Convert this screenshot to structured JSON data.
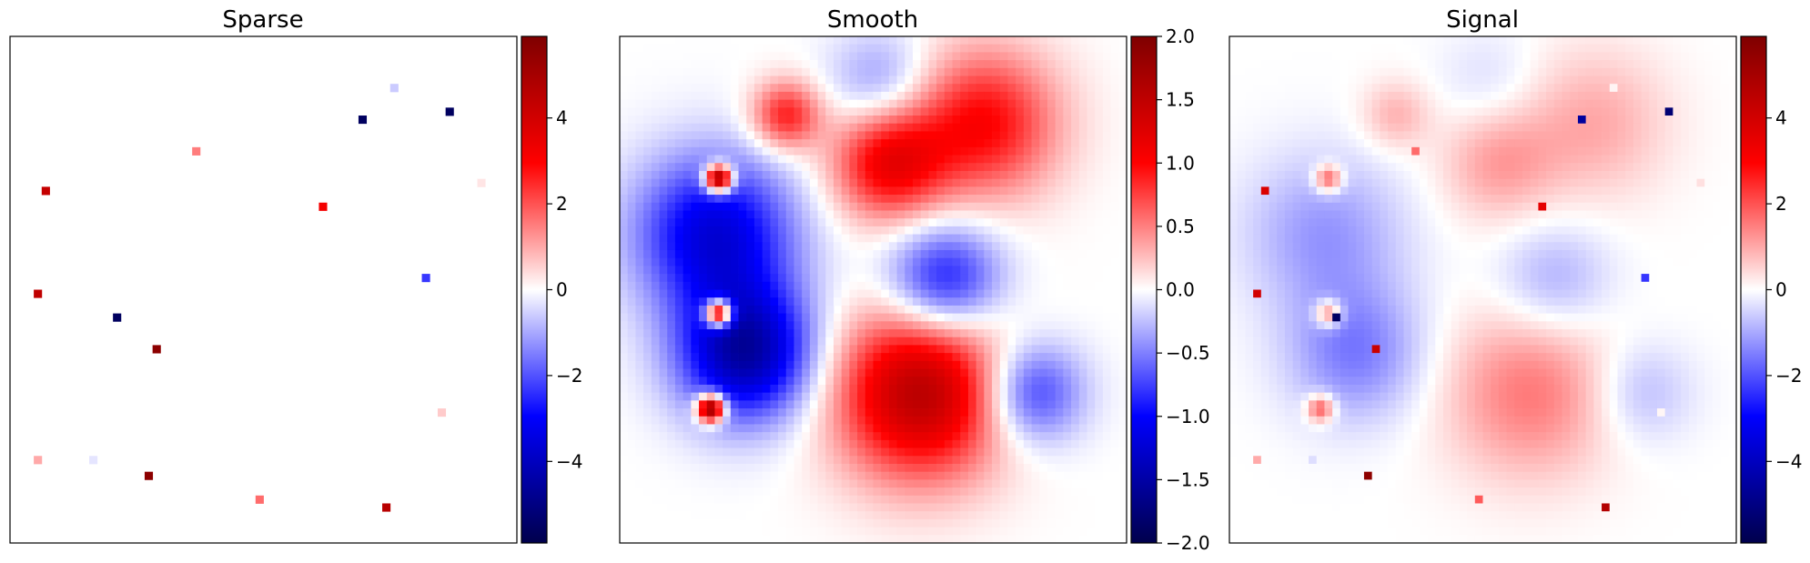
{
  "chart_data": [
    {
      "type": "heatmap",
      "title": "Sparse",
      "grid": false,
      "colormap": "seismic",
      "colorbar": {
        "ticks": [
          4,
          2,
          0,
          -2,
          -4
        ],
        "tick_labels": [
          "4",
          "2",
          "0",
          "−2",
          "−4"
        ],
        "range": [
          -5.9,
          5.9
        ]
      },
      "grid_size": 64,
      "spikes": [
        {
          "col": 48.5,
          "row": 6.2,
          "value": -0.6
        },
        {
          "col": 44.5,
          "row": 10.0,
          "value": -5.6
        },
        {
          "col": 55.5,
          "row": 9.2,
          "value": -5.6
        },
        {
          "col": 23.5,
          "row": 14.3,
          "value": 1.5
        },
        {
          "col": 4.2,
          "row": 19.2,
          "value": 4.3
        },
        {
          "col": 39.6,
          "row": 21.2,
          "value": 3.2
        },
        {
          "col": 59.6,
          "row": 18.2,
          "value": 0.3
        },
        {
          "col": 3.2,
          "row": 32.2,
          "value": 4.4
        },
        {
          "col": 52.5,
          "row": 30.3,
          "value": -2.3
        },
        {
          "col": 13.5,
          "row": 35.2,
          "value": -5.6
        },
        {
          "col": 18.7,
          "row": 39.2,
          "value": 5.6
        },
        {
          "col": 54.5,
          "row": 47.3,
          "value": 0.6
        },
        {
          "col": 3.2,
          "row": 53.3,
          "value": 1.0
        },
        {
          "col": 10.2,
          "row": 53.3,
          "value": -0.3
        },
        {
          "col": 17.5,
          "row": 55.2,
          "value": 5.6
        },
        {
          "col": 31.5,
          "row": 58.3,
          "value": 1.7
        },
        {
          "col": 47.5,
          "row": 59.2,
          "value": 4.6
        }
      ]
    },
    {
      "type": "heatmap",
      "title": "Smooth",
      "grid": false,
      "colormap": "seismic",
      "colorbar": {
        "ticks": [
          2.0,
          1.5,
          1.0,
          0.5,
          0.0,
          -0.5,
          -1.0,
          -1.5,
          -2.0
        ],
        "tick_labels": [
          "2.0",
          "1.5",
          "1.0",
          "0.5",
          "0.0",
          "−0.5",
          "−1.0",
          "−1.5",
          "−2.0"
        ],
        "range": [
          -2.0,
          2.0
        ]
      },
      "grid_size": 64,
      "bumps": [
        {
          "col": 33,
          "row": 6,
          "amplitude": -0.45,
          "sigma": 4.5
        },
        {
          "col": 21,
          "row": 10,
          "amplitude": 0.9,
          "sigma": 3.0
        },
        {
          "col": 46,
          "row": 11,
          "amplitude": 1.0,
          "sigma": 6.5
        },
        {
          "col": 34,
          "row": 16,
          "amplitude": 1.1,
          "sigma": 5.0
        },
        {
          "col": 12,
          "row": 25,
          "amplitude": -1.2,
          "sigma": 7.0
        },
        {
          "col": 41,
          "row": 31,
          "amplitude": -1.0,
          "sigma": 5.0
        },
        {
          "col": 16,
          "row": 40,
          "amplitude": -1.5,
          "sigma": 6.0
        },
        {
          "col": 38,
          "row": 45,
          "amplitude": 1.55,
          "sigma": 7.5
        },
        {
          "col": 52,
          "row": 45,
          "amplitude": -0.85,
          "sigma": 4.5
        },
        {
          "col": 12.5,
          "row": 18,
          "amplitude": 2.3,
          "sigma": 1.2
        },
        {
          "col": 12.5,
          "row": 35,
          "amplitude": 2.3,
          "sigma": 1.2
        },
        {
          "col": 11.5,
          "row": 47,
          "amplitude": 2.3,
          "sigma": 1.2
        }
      ]
    },
    {
      "type": "heatmap",
      "title": "Signal",
      "grid": false,
      "colormap": "seismic",
      "colorbar": {
        "ticks": [
          4,
          2,
          0,
          -2,
          -4
        ],
        "tick_labels": [
          "4",
          "2",
          "0",
          "−2",
          "−4"
        ],
        "range": [
          -5.9,
          5.9
        ]
      },
      "composition": "Sparse + Smooth"
    }
  ]
}
